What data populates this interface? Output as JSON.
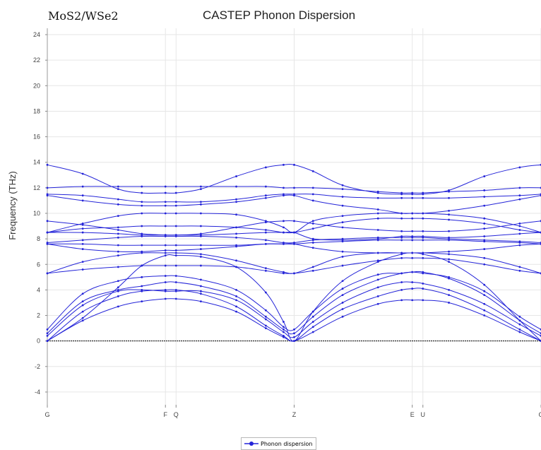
{
  "chart_data": {
    "type": "line",
    "title": "CASTEP Phonon Dispersion",
    "subtitle_label": "MoS2/WSe2",
    "ylabel": "Frequency (THz)",
    "xlabel": "",
    "ylim": [
      -5,
      24.5
    ],
    "y_ticks": [
      24,
      22,
      20,
      18,
      16,
      14,
      12,
      10,
      8,
      6,
      4,
      2,
      0,
      -2,
      -4
    ],
    "x_ticks": [
      {
        "k": 0.0,
        "label": "G"
      },
      {
        "k": 1.0,
        "label": "F"
      },
      {
        "k": 1.09,
        "label": "Q"
      },
      {
        "k": 2.09,
        "label": "Z"
      },
      {
        "k": 3.09,
        "label": "E"
      },
      {
        "k": 3.18,
        "label": "U"
      },
      {
        "k": 4.18,
        "label": "G"
      }
    ],
    "zero_line": true,
    "grid": true,
    "legend": {
      "label": "Phonon dispersion",
      "position": "bottom-center"
    },
    "series_color": "#2424d8",
    "series": [
      {
        "x": [
          0,
          0.3,
          0.6,
          0.8,
          1.0,
          1.09,
          1.3,
          1.6,
          1.85,
          2.0,
          2.09,
          2.25,
          2.5,
          2.8,
          3.0,
          3.09,
          3.18,
          3.4,
          3.7,
          4.0,
          4.18
        ],
        "values": [
          0,
          1.6,
          2.7,
          3.1,
          3.3,
          3.3,
          3.1,
          2.3,
          1.0,
          0.3,
          0,
          0.7,
          1.9,
          2.9,
          3.2,
          3.2,
          3.2,
          3.0,
          2.0,
          0.7,
          0
        ]
      },
      {
        "x": [
          0,
          0.3,
          0.6,
          0.8,
          1.0,
          1.09,
          1.3,
          1.6,
          1.85,
          2.0,
          2.09,
          2.25,
          2.5,
          2.8,
          3.0,
          3.09,
          3.18,
          3.4,
          3.7,
          4.0,
          4.18
        ],
        "values": [
          0,
          2.3,
          3.5,
          3.9,
          4.0,
          4.0,
          3.7,
          2.7,
          1.2,
          0.4,
          0,
          1.1,
          2.5,
          3.5,
          4.0,
          4.1,
          4.1,
          3.6,
          2.4,
          0.9,
          0
        ]
      },
      {
        "x": [
          0,
          0.3,
          0.6,
          0.8,
          1.0,
          1.09,
          1.3,
          1.6,
          1.85,
          2.0,
          2.09,
          2.25,
          2.5,
          2.8,
          3.0,
          3.09,
          3.18,
          3.4,
          3.7,
          4.0,
          4.18
        ],
        "values": [
          0.4,
          2.8,
          3.9,
          4.0,
          3.9,
          3.9,
          3.9,
          3.2,
          1.7,
          0.7,
          0.3,
          1.5,
          3.0,
          4.2,
          4.6,
          4.6,
          4.5,
          4.0,
          2.9,
          1.3,
          0.4
        ]
      },
      {
        "x": [
          0,
          0.3,
          0.6,
          0.8,
          1.0,
          1.09,
          1.3,
          1.6,
          1.85,
          2.0,
          2.09,
          2.25,
          2.5,
          2.8,
          3.0,
          3.09,
          3.18,
          3.4,
          3.7,
          4.0,
          4.18
        ],
        "values": [
          0.6,
          3.1,
          4.0,
          4.3,
          4.6,
          4.6,
          4.3,
          3.5,
          1.9,
          0.9,
          0.6,
          1.9,
          3.6,
          4.8,
          5.3,
          5.4,
          5.4,
          4.9,
          3.6,
          1.6,
          0.6
        ]
      },
      {
        "x": [
          0,
          0.3,
          0.6,
          0.8,
          1.0,
          1.09,
          1.3,
          1.6,
          1.85,
          2.0,
          2.09,
          2.25,
          2.5,
          2.8,
          3.0,
          3.09,
          3.18,
          3.4,
          3.7,
          4.0,
          4.18
        ],
        "values": [
          0.9,
          3.7,
          4.7,
          5.0,
          5.1,
          5.1,
          4.8,
          4.0,
          2.4,
          1.1,
          0.9,
          2.3,
          4.1,
          5.2,
          5.3,
          5.4,
          5.3,
          5.0,
          3.9,
          1.9,
          0.9
        ]
      },
      {
        "x": [
          0,
          0.3,
          0.6,
          0.8,
          1.0,
          1.09,
          1.3,
          1.6,
          1.85,
          2.0,
          2.09,
          2.25,
          2.5,
          2.8,
          3.0,
          3.09,
          3.18,
          3.4,
          3.7,
          4.0,
          4.18
        ],
        "values": [
          0,
          1.8,
          4.2,
          5.9,
          6.7,
          6.7,
          6.6,
          5.8,
          3.8,
          1.5,
          0,
          2.3,
          4.7,
          6.2,
          6.8,
          6.9,
          6.8,
          6.2,
          4.4,
          1.6,
          0
        ]
      },
      {
        "x": [
          0,
          0.3,
          0.6,
          0.8,
          1.0,
          1.09,
          1.3,
          1.6,
          1.85,
          2.0,
          2.09,
          2.25,
          2.5,
          2.8,
          3.0,
          3.09,
          3.18,
          3.4,
          3.7,
          4.0,
          4.18
        ],
        "values": [
          5.3,
          5.6,
          5.8,
          5.9,
          5.9,
          5.9,
          5.9,
          5.8,
          5.5,
          5.3,
          5.3,
          5.5,
          5.9,
          6.3,
          6.5,
          6.5,
          6.5,
          6.4,
          6.0,
          5.5,
          5.3
        ]
      },
      {
        "x": [
          0,
          0.3,
          0.6,
          0.8,
          1.0,
          1.09,
          1.3,
          1.6,
          1.85,
          2.0,
          2.09,
          2.25,
          2.5,
          2.8,
          3.0,
          3.09,
          3.18,
          3.4,
          3.7,
          4.0,
          4.18
        ],
        "values": [
          5.3,
          6.2,
          6.7,
          6.9,
          6.9,
          6.9,
          6.8,
          6.3,
          5.7,
          5.4,
          5.3,
          5.8,
          6.6,
          6.9,
          6.9,
          6.9,
          6.9,
          6.8,
          6.5,
          5.8,
          5.3
        ]
      },
      {
        "x": [
          0,
          0.3,
          0.6,
          0.8,
          1.0,
          1.09,
          1.3,
          1.6,
          1.85,
          2.0,
          2.09,
          2.25,
          2.5,
          2.8,
          3.0,
          3.09,
          3.18,
          3.4,
          3.7,
          4.0,
          4.18
        ],
        "values": [
          7.6,
          7.2,
          7.0,
          7.0,
          7.1,
          7.1,
          7.2,
          7.4,
          7.6,
          7.6,
          7.6,
          7.3,
          7.0,
          6.9,
          6.9,
          6.9,
          6.9,
          7.0,
          7.2,
          7.5,
          7.6
        ]
      },
      {
        "x": [
          0,
          0.3,
          0.6,
          0.8,
          1.0,
          1.09,
          1.3,
          1.6,
          1.85,
          2.0,
          2.09,
          2.25,
          2.5,
          2.8,
          3.0,
          3.09,
          3.18,
          3.4,
          3.7,
          4.0,
          4.18
        ],
        "values": [
          7.6,
          7.6,
          7.5,
          7.5,
          7.5,
          7.5,
          7.5,
          7.5,
          7.6,
          7.6,
          7.6,
          7.7,
          7.8,
          7.9,
          7.9,
          7.9,
          7.9,
          7.9,
          7.8,
          7.7,
          7.6
        ]
      },
      {
        "x": [
          0,
          0.3,
          0.6,
          0.8,
          1.0,
          1.09,
          1.3,
          1.6,
          1.85,
          2.0,
          2.09,
          2.25,
          2.5,
          2.8,
          3.0,
          3.09,
          3.18,
          3.4,
          3.7,
          4.0,
          4.18
        ],
        "values": [
          7.7,
          7.9,
          8.1,
          8.2,
          8.2,
          8.2,
          8.2,
          8.1,
          7.9,
          7.7,
          7.7,
          7.9,
          8.0,
          8.1,
          8.1,
          8.1,
          8.1,
          8.0,
          7.9,
          7.8,
          7.7
        ]
      },
      {
        "x": [
          0,
          0.3,
          0.6,
          0.8,
          1.0,
          1.09,
          1.3,
          1.6,
          1.85,
          2.0,
          2.09,
          2.25,
          2.5,
          2.8,
          3.0,
          3.09,
          3.18,
          3.4,
          3.7,
          4.0,
          4.18
        ],
        "values": [
          8.5,
          8.5,
          8.4,
          8.3,
          8.3,
          8.3,
          8.3,
          8.4,
          8.5,
          8.5,
          8.5,
          8.0,
          7.9,
          8.0,
          8.2,
          8.2,
          8.2,
          8.1,
          8.2,
          8.4,
          8.5
        ]
      },
      {
        "x": [
          0,
          0.3,
          0.6,
          0.8,
          1.0,
          1.09,
          1.3,
          1.6,
          1.85,
          2.0,
          2.09,
          2.25,
          2.5,
          2.8,
          3.0,
          3.09,
          3.18,
          3.4,
          3.7,
          4.0,
          4.18
        ],
        "values": [
          8.5,
          8.8,
          8.9,
          9.0,
          9.0,
          9.0,
          9.0,
          8.9,
          8.7,
          8.5,
          8.5,
          8.8,
          9.3,
          9.6,
          9.6,
          9.6,
          9.6,
          9.5,
          9.2,
          8.7,
          8.5
        ]
      },
      {
        "x": [
          0,
          0.3,
          0.6,
          0.8,
          1.0,
          1.09,
          1.3,
          1.6,
          1.85,
          2.0,
          2.09,
          2.25,
          2.5,
          2.8,
          3.0,
          3.09,
          3.18,
          3.4,
          3.7,
          4.0,
          4.18
        ],
        "values": [
          9.4,
          9.1,
          8.7,
          8.4,
          8.3,
          8.3,
          8.4,
          8.9,
          9.3,
          9.4,
          9.4,
          9.2,
          8.9,
          8.7,
          8.6,
          8.6,
          8.6,
          8.6,
          8.8,
          9.2,
          9.4
        ]
      },
      {
        "x": [
          0,
          0.3,
          0.6,
          0.8,
          1.0,
          1.09,
          1.3,
          1.6,
          1.85,
          2.0,
          2.09,
          2.25,
          2.5,
          2.8,
          3.0,
          3.09,
          3.18,
          3.4,
          3.7,
          4.0,
          4.18
        ],
        "values": [
          8.5,
          9.2,
          9.8,
          10.0,
          10.0,
          10.0,
          10.0,
          9.9,
          9.4,
          8.9,
          8.5,
          9.4,
          9.8,
          10.0,
          10.0,
          10.0,
          10.0,
          9.9,
          9.6,
          9.0,
          8.5
        ]
      },
      {
        "x": [
          0,
          0.3,
          0.6,
          0.8,
          1.0,
          1.09,
          1.3,
          1.6,
          1.85,
          2.0,
          2.09,
          2.25,
          2.5,
          2.8,
          3.0,
          3.09,
          3.18,
          3.4,
          3.7,
          4.0,
          4.18
        ],
        "values": [
          11.4,
          11.0,
          10.7,
          10.6,
          10.6,
          10.6,
          10.7,
          10.9,
          11.2,
          11.4,
          11.4,
          11.0,
          10.6,
          10.3,
          10.0,
          10.0,
          10.0,
          10.2,
          10.6,
          11.1,
          11.4
        ]
      },
      {
        "x": [
          0,
          0.3,
          0.6,
          0.8,
          1.0,
          1.09,
          1.3,
          1.6,
          1.85,
          2.0,
          2.09,
          2.25,
          2.5,
          2.8,
          3.0,
          3.09,
          3.18,
          3.4,
          3.7,
          4.0,
          4.18
        ],
        "values": [
          11.5,
          11.4,
          11.1,
          10.9,
          10.9,
          10.9,
          10.9,
          11.1,
          11.4,
          11.5,
          11.5,
          11.5,
          11.3,
          11.2,
          11.2,
          11.2,
          11.2,
          11.2,
          11.3,
          11.4,
          11.5
        ]
      },
      {
        "x": [
          0,
          0.3,
          0.6,
          0.8,
          1.0,
          1.09,
          1.3,
          1.6,
          1.85,
          2.0,
          2.09,
          2.25,
          2.5,
          2.8,
          3.0,
          3.09,
          3.18,
          3.4,
          3.7,
          4.0,
          4.18
        ],
        "values": [
          12.0,
          12.1,
          12.1,
          12.1,
          12.1,
          12.1,
          12.1,
          12.1,
          12.1,
          12.0,
          12.0,
          12.0,
          11.9,
          11.7,
          11.6,
          11.6,
          11.6,
          11.7,
          11.8,
          12.0,
          12.0
        ]
      },
      {
        "x": [
          0,
          0.3,
          0.6,
          0.8,
          1.0,
          1.09,
          1.3,
          1.6,
          1.85,
          2.0,
          2.09,
          2.25,
          2.5,
          2.8,
          3.0,
          3.09,
          3.18,
          3.4,
          3.7,
          4.0,
          4.18
        ],
        "values": [
          13.8,
          13.1,
          11.9,
          11.6,
          11.6,
          11.6,
          11.9,
          12.9,
          13.6,
          13.8,
          13.8,
          13.3,
          12.2,
          11.6,
          11.5,
          11.5,
          11.5,
          11.8,
          12.9,
          13.6,
          13.8
        ]
      }
    ]
  }
}
